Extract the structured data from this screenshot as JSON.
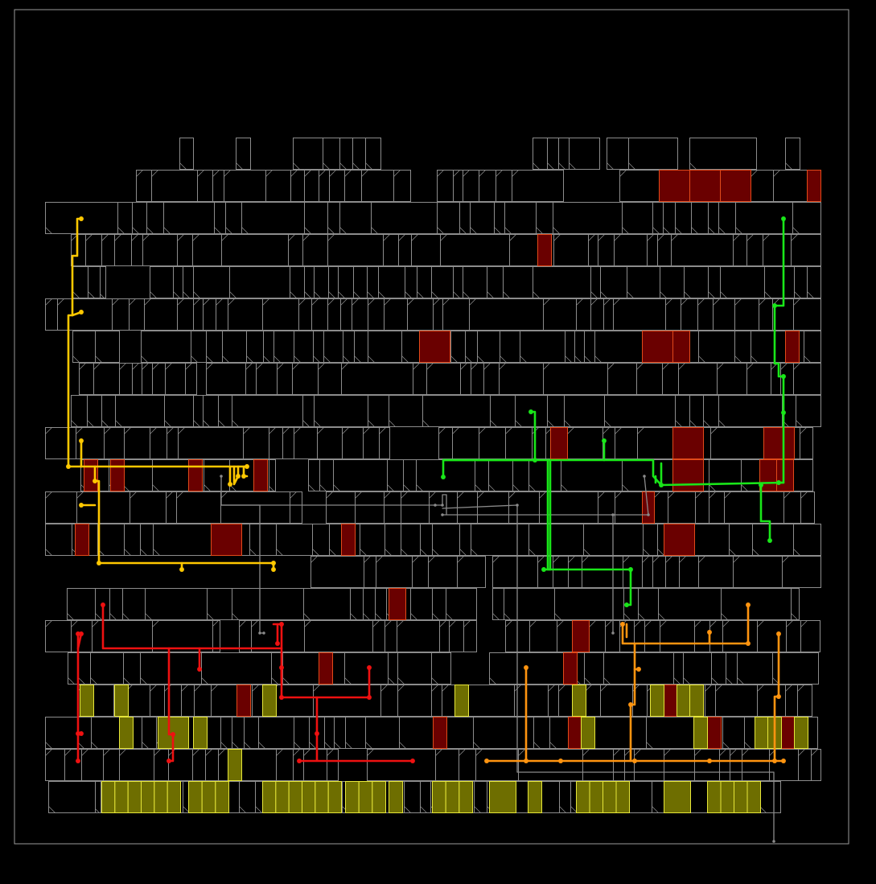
{
  "view": {
    "title": "",
    "background": "#000000",
    "die_outline_color": "#9a9a9a",
    "cell_outline_color": "#8c8c8c"
  },
  "legend": [],
  "highlight_styles": {
    "critical": {
      "fill": "#6a0000",
      "stroke": "#e24a1a"
    },
    "selected": {
      "fill": "#6e6e00",
      "stroke": "#e6e63a"
    }
  },
  "net_colors": {
    "net_yellow": "#ffc800",
    "net_green": "#19e619",
    "net_red": "#ee1111",
    "net_orange": "#ff9410",
    "net_gray": "#8a8a8a"
  }
}
